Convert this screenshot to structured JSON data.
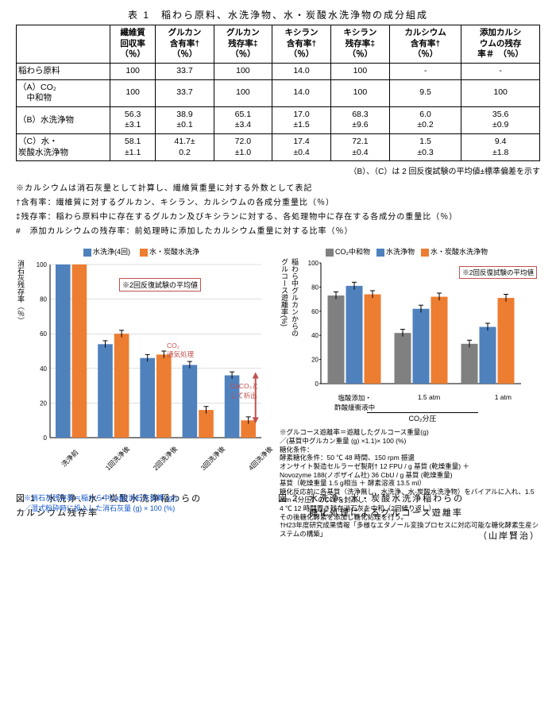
{
  "table": {
    "title": "表 1　稲わら原料、水洗浄物、水・炭酸水洗浄物の成分組成",
    "headers": [
      "",
      "繊維質\n回収率\n（％）",
      "グルカン\n含有率†\n（％）",
      "グルカン\n残存率‡\n（％）",
      "キシラン\n含有率†\n（％）",
      "キシラン\n残存率‡\n（％）",
      "カルシウム\n含有率†\n（％）",
      "添加カルシ\nウムの残存\n率＃　（％）"
    ],
    "rows": [
      [
        "稲わら原料",
        "100",
        "33.7",
        "100",
        "14.0",
        "100",
        "-",
        "-"
      ],
      [
        "（A）CO₂\n　中和物",
        "100",
        "33.7",
        "100",
        "14.0",
        "100",
        "9.5",
        "100"
      ],
      [
        "（B）水洗浄物",
        "56.3\n±3.1",
        "38.9\n±0.1",
        "65.1\n±3.4",
        "17.0\n±1.5",
        "68.3\n±9.6",
        "6.0\n±0.2",
        "35.6\n±0.9"
      ],
      [
        "（C）水・\n炭酸水洗浄物",
        "58.1\n±1.1",
        "41.7±\n0.2",
        "72.0\n±1.0",
        "17.4\n±0.4",
        "72.1\n±0.4",
        "1.5\n±0.3",
        "9.4\n±1.8"
      ]
    ],
    "footnote_right": "（B）、（C）は 2 回反復試験の平均値±標準偏差を示す"
  },
  "notes": [
    "※カルシウムは消石灰量として計算し、繊維質重量に対する外数として表記",
    "†含有率：繊維質に対するグルカン、キシラン、カルシウムの各成分重量比（％）",
    "‡残存率：稲わら原料中に存在するグルカン及びキシランに対する、各処理物中に存在する各成分の重量比（％）",
    "#　添加カルシウムの残存率：前処理時に添加したカルシウム重量に対する比率（％）"
  ],
  "chart1": {
    "type": "bar",
    "legend": [
      {
        "label": "水洗浄(4回)",
        "color": "#4f81bd"
      },
      {
        "label": "水・炭酸水洗浄",
        "color": "#ed7d31"
      }
    ],
    "annotation_box": "※2回反復試験の平均値",
    "anno_co2": "CO₂\n通気処理",
    "anno_caco3": "CaCO₃と\nして析出",
    "ylabel": "消石灰残存率（％）",
    "ylim": [
      0,
      100
    ],
    "ytick_step": 20,
    "categories": [
      "洗浄前",
      "1回洗浄後",
      "2回洗浄後",
      "3回洗浄後",
      "4回洗浄後"
    ],
    "series_blue": [
      100,
      54,
      46,
      42,
      36
    ],
    "series_orange": [
      100,
      60,
      48,
      16,
      10
    ],
    "errbars_blue": [
      0,
      2,
      2,
      2,
      2
    ],
    "errbars_orange": [
      0,
      2,
      2,
      2,
      2
    ],
    "caption": "※消石灰残存率＝稲わら中Ca量(消石灰換算 (g))\n／湿式粉砕時に投入した消石灰量 (g) × 100 (%)",
    "background_color": "#ffffff",
    "grid_color": "#bfbfbf",
    "bar_width": 0.35
  },
  "chart2": {
    "type": "bar",
    "legend": [
      {
        "label": "CO₂中和物",
        "color": "#808080"
      },
      {
        "label": "水洗浄物",
        "color": "#4f81bd"
      },
      {
        "label": "水・炭酸水洗浄物",
        "color": "#ed7d31"
      }
    ],
    "annotation_box": "※2回反復試験の平均値",
    "ylabel": "稲わら中グルカンからの\nグルコース遊離率(%)",
    "ylim": [
      0,
      100
    ],
    "ytick_step": 20,
    "groups": [
      "塩酸添加・\n酢酸緩衝液中",
      "1.5 atm",
      "1 atm"
    ],
    "co2_axis_label": "CO₂分圧",
    "series_gray": [
      73,
      42,
      33
    ],
    "series_blue": [
      81,
      62,
      47
    ],
    "series_orange": [
      74,
      72,
      71
    ],
    "errbars": [
      3,
      3,
      3
    ],
    "notes": [
      "※グルコース遊離率＝遊離したグルコース重量(g)\n／(基質中グルカン重量 (g) ×1.1)× 100 (%)",
      "糖化条件：",
      "酵素糖化条件：50 ℃ 48 時間、150 rpm 振盪",
      "オンサイト製造セルラーゼ製剤† 12 FPU / g 基質 (乾燥重量) ＋\nNovozyme 188(ノボザイム社) 36 CbU / g 基質 (乾燥重量)",
      "基質（乾燥重量 1.5 g相当 ＋ 酵素溶液 13.5 ml）",
      "糖化反応前に各基質（洗浄無し、水洗浄、水-炭酸水洗浄物）をバイアルに入れ、1.5 atm（分圧）のCO₂を封入し、",
      "4 ℃ 12 時間置き残存消石灰を中和（2回繰り返し）。",
      "その後糖化酵素を添加し糖化処理を行う。",
      "†H23年度研究成果情報「多様なエタノール変換プロセスに対応可能な糖化酵素生産システムの構築」"
    ],
    "background_color": "#ffffff",
    "bar_width": 0.25
  },
  "fig_captions": {
    "fig1": "図 1　水洗浄、水・炭酸水洗浄稲わらの\nカルシウム残存率",
    "fig2": "図 2　水洗浄、水・炭酸水洗浄稲わらの\n　　　糖化処理によるグルコース遊離率"
  },
  "author": "（山岸賢治）"
}
